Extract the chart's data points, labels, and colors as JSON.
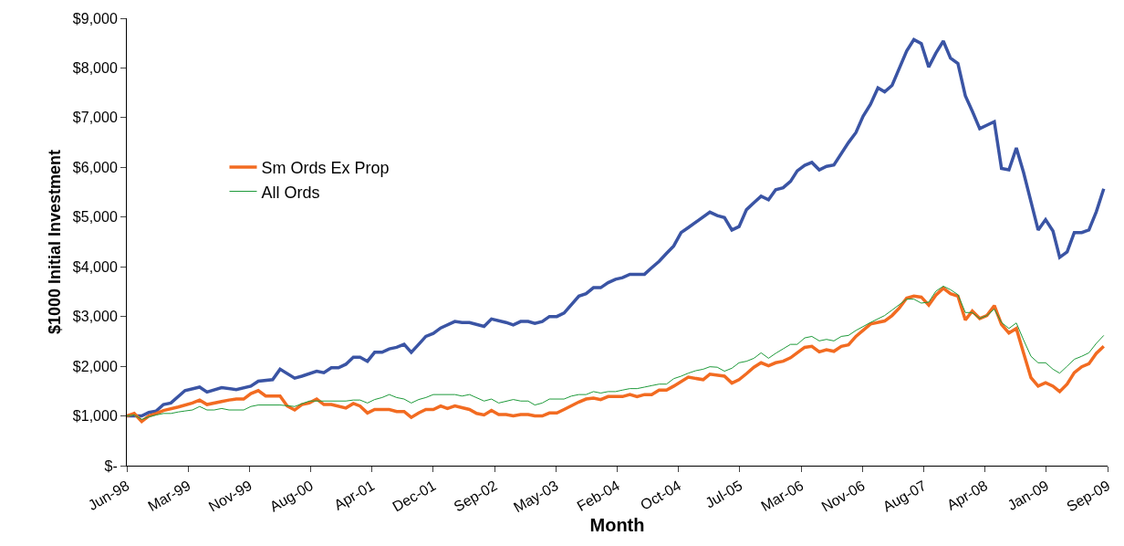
{
  "chart_data": {
    "type": "line",
    "xlabel": "Month",
    "ylabel": "$1000 Initial Investment",
    "xlim": [
      "1998-06-30",
      "2009-09-16"
    ],
    "xticks": [
      {
        "value": "1998-06-30",
        "label": "Jun-98"
      },
      {
        "value": "1999-03-13",
        "label": "Mar-99"
      },
      {
        "value": "1999-11-24",
        "label": "Nov-99"
      },
      {
        "value": "2000-08-06",
        "label": "Aug-00"
      },
      {
        "value": "2001-04-19",
        "label": "Apr-01"
      },
      {
        "value": "2001-12-31",
        "label": "Dec-01"
      },
      {
        "value": "2002-09-13",
        "label": "Sep-02"
      },
      {
        "value": "2003-05-27",
        "label": "May-03"
      },
      {
        "value": "2004-02-07",
        "label": "Feb-04"
      },
      {
        "value": "2004-10-20",
        "label": "Oct-04"
      },
      {
        "value": "2005-07-03",
        "label": "Jul-05"
      },
      {
        "value": "2006-03-16",
        "label": "Mar-06"
      },
      {
        "value": "2006-11-27",
        "label": "Nov-06"
      },
      {
        "value": "2007-08-10",
        "label": "Aug-07"
      },
      {
        "value": "2008-04-22",
        "label": "Apr-08"
      },
      {
        "value": "2009-01-03",
        "label": "Jan-09"
      },
      {
        "value": "2009-09-16",
        "label": "Sep-09"
      }
    ],
    "ylim": [
      0,
      9000
    ],
    "yticks": [
      {
        "value": 0,
        "label": "$-"
      },
      {
        "value": 1000,
        "label": "$1,000"
      },
      {
        "value": 2000,
        "label": "$2,000"
      },
      {
        "value": 3000,
        "label": "$3,000"
      },
      {
        "value": 4000,
        "label": "$4,000"
      },
      {
        "value": 5000,
        "label": "$5,000"
      },
      {
        "value": 6000,
        "label": "$6,000"
      },
      {
        "value": 7000,
        "label": "$7,000"
      },
      {
        "value": 8000,
        "label": "$8,000"
      },
      {
        "value": 9000,
        "label": "$9,000"
      }
    ],
    "legend": "left",
    "marker": "none",
    "line_style": "solid",
    "series": [
      {
        "color": "#3a54a4",
        "x": [
          "1998-06-30",
          "1998-08-31",
          "1998-09-30",
          "1998-10-31",
          "1998-11-30",
          "1998-12-31",
          "1999-02-28",
          "1999-04-30",
          "1999-05-31",
          "1999-07-31",
          "1999-09-30",
          "1999-11-30",
          "1999-12-31",
          "2000-02-29",
          "2000-03-31",
          "2000-05-31",
          "2000-06-30",
          "2000-08-31",
          "2000-09-30",
          "2000-10-31",
          "2000-11-30",
          "2000-12-31",
          "2001-01-31",
          "2001-02-28",
          "2001-03-31",
          "2001-04-30",
          "2001-05-31",
          "2001-06-30",
          "2001-07-31",
          "2001-08-31",
          "2001-09-30",
          "2001-10-31",
          "2001-11-30",
          "2001-12-31",
          "2002-01-31",
          "2002-03-31",
          "2002-04-30",
          "2002-05-31",
          "2002-07-31",
          "2002-08-31",
          "2002-10-31",
          "2002-11-30",
          "2002-12-31",
          "2003-01-31",
          "2003-02-28",
          "2003-03-31",
          "2003-04-30",
          "2003-05-31",
          "2003-06-30",
          "2003-08-31",
          "2003-09-30",
          "2003-10-31",
          "2003-11-30",
          "2003-12-31",
          "2004-01-31",
          "2004-02-29",
          "2004-03-31",
          "2004-05-31",
          "2004-06-30",
          "2004-07-31",
          "2004-08-31",
          "2004-09-30",
          "2004-10-31",
          "2004-11-30",
          "2005-02-28",
          "2005-03-31",
          "2005-04-30",
          "2005-05-31",
          "2005-06-30",
          "2005-07-31",
          "2005-08-31",
          "2005-09-30",
          "2005-10-31",
          "2005-11-30",
          "2005-12-31",
          "2006-01-31",
          "2006-02-28",
          "2006-03-31",
          "2006-04-30",
          "2006-05-31",
          "2006-06-30",
          "2006-07-31",
          "2006-09-30",
          "2006-10-31",
          "2006-11-30",
          "2006-12-31",
          "2007-01-31",
          "2007-02-28",
          "2007-03-31",
          "2007-05-31",
          "2007-06-30",
          "2007-07-31",
          "2007-08-31",
          "2007-09-30",
          "2007-10-31",
          "2007-11-30",
          "2007-12-31",
          "2008-01-31",
          "2008-02-29",
          "2008-03-31",
          "2008-05-31",
          "2008-06-30",
          "2008-07-31",
          "2008-08-31",
          "2008-09-30",
          "2008-11-30",
          "2008-12-31",
          "2009-01-31",
          "2009-02-28",
          "2009-03-31",
          "2009-04-30",
          "2009-05-31",
          "2009-06-30",
          "2009-07-31",
          "2009-08-31"
        ],
        "values": [
          1000,
          1000,
          1070,
          1100,
          1230,
          1260,
          1510,
          1580,
          1480,
          1570,
          1530,
          1600,
          1700,
          1730,
          1940,
          1760,
          1800,
          1900,
          1870,
          1970,
          1970,
          2040,
          2180,
          2180,
          2100,
          2280,
          2280,
          2350,
          2380,
          2440,
          2280,
          2440,
          2600,
          2660,
          2770,
          2900,
          2880,
          2880,
          2800,
          2950,
          2880,
          2830,
          2900,
          2900,
          2860,
          2900,
          3000,
          3000,
          3070,
          3410,
          3460,
          3580,
          3580,
          3680,
          3750,
          3780,
          3850,
          3850,
          3980,
          4110,
          4270,
          4420,
          4690,
          4790,
          5100,
          5030,
          4990,
          4740,
          4810,
          5150,
          5290,
          5420,
          5350,
          5550,
          5590,
          5720,
          5930,
          6040,
          6100,
          5950,
          6020,
          6050,
          6500,
          6700,
          7030,
          7270,
          7600,
          7520,
          7650,
          8340,
          8570,
          8490,
          8020,
          8300,
          8540,
          8200,
          8090,
          7440,
          7130,
          6780,
          6920,
          5980,
          5950,
          6390,
          5900,
          4740,
          4950,
          4720,
          4190,
          4300,
          4690,
          4690,
          4740,
          5110,
          5570
        ]
      },
      {
        "name": "Sm Ords Ex Prop",
        "color": "#f26b21",
        "x": [
          "1998-06-30",
          "1998-07-31",
          "1998-08-31",
          "1998-09-30",
          "1998-10-31",
          "1998-11-30",
          "1999-01-31",
          "1999-03-31",
          "1999-04-30",
          "1999-05-31",
          "1999-07-31",
          "1999-08-31",
          "1999-09-30",
          "1999-10-31",
          "1999-11-30",
          "1999-12-31",
          "2000-01-31",
          "2000-03-31",
          "2000-04-30",
          "2000-05-31",
          "2000-06-30",
          "2000-07-31",
          "2000-08-31",
          "2000-09-30",
          "2000-10-31",
          "2000-12-31",
          "2001-01-31",
          "2001-02-28",
          "2001-03-31",
          "2001-04-30",
          "2001-06-30",
          "2001-07-31",
          "2001-08-31",
          "2001-09-30",
          "2001-10-31",
          "2001-11-30",
          "2001-12-31",
          "2002-01-31",
          "2002-02-28",
          "2002-03-31",
          "2002-05-31",
          "2002-06-30",
          "2002-07-31",
          "2002-08-31",
          "2002-09-30",
          "2002-10-31",
          "2002-11-30",
          "2002-12-31",
          "2003-01-31",
          "2003-02-28",
          "2003-03-31",
          "2003-04-30",
          "2003-05-31",
          "2003-06-30",
          "2003-08-31",
          "2003-09-30",
          "2003-10-31",
          "2003-11-30",
          "2003-12-31",
          "2004-02-29",
          "2004-03-31",
          "2004-04-30",
          "2004-05-31",
          "2004-06-30",
          "2004-07-31",
          "2004-08-31",
          "2004-09-30",
          "2004-11-30",
          "2005-01-31",
          "2005-02-28",
          "2005-04-30",
          "2005-05-31",
          "2005-06-30",
          "2005-07-31",
          "2005-08-31",
          "2005-09-30",
          "2005-10-31",
          "2005-11-30",
          "2005-12-31",
          "2006-01-31",
          "2006-02-28",
          "2006-03-31",
          "2006-04-30",
          "2006-05-31",
          "2006-06-30",
          "2006-07-31",
          "2006-08-31",
          "2006-09-30",
          "2006-10-31",
          "2006-12-31",
          "2007-02-28",
          "2007-03-31",
          "2007-04-30",
          "2007-05-31",
          "2007-06-30",
          "2007-07-31",
          "2007-08-31",
          "2007-09-30",
          "2007-10-31",
          "2007-11-30",
          "2007-12-31",
          "2008-01-31",
          "2008-02-29",
          "2008-03-31",
          "2008-04-30",
          "2008-05-31",
          "2008-06-30",
          "2008-07-31",
          "2008-08-31",
          "2008-09-30",
          "2008-10-31",
          "2008-11-30",
          "2008-12-31",
          "2009-01-31",
          "2009-02-28",
          "2009-03-31",
          "2009-04-30",
          "2009-05-31",
          "2009-06-30",
          "2009-07-31",
          "2009-08-31"
        ],
        "values": [
          1000,
          1050,
          890,
          1000,
          1050,
          1110,
          1180,
          1260,
          1320,
          1230,
          1290,
          1320,
          1340,
          1340,
          1450,
          1510,
          1400,
          1400,
          1200,
          1120,
          1230,
          1260,
          1340,
          1230,
          1230,
          1160,
          1250,
          1200,
          1060,
          1130,
          1130,
          1090,
          1090,
          970,
          1060,
          1130,
          1130,
          1200,
          1150,
          1200,
          1130,
          1050,
          1020,
          1110,
          1030,
          1030,
          1000,
          1030,
          1030,
          1000,
          1000,
          1060,
          1060,
          1130,
          1280,
          1340,
          1360,
          1330,
          1390,
          1390,
          1430,
          1390,
          1430,
          1430,
          1520,
          1520,
          1600,
          1780,
          1730,
          1840,
          1800,
          1660,
          1730,
          1850,
          1980,
          2070,
          2010,
          2070,
          2100,
          2170,
          2270,
          2380,
          2400,
          2290,
          2330,
          2300,
          2400,
          2430,
          2600,
          2850,
          2910,
          3020,
          3170,
          3370,
          3410,
          3390,
          3230,
          3430,
          3570,
          3460,
          3410,
          2930,
          3110,
          2960,
          3020,
          3220,
          2840,
          2670,
          2760,
          2270,
          1770,
          1600,
          1670,
          1600,
          1490,
          1640,
          1870,
          1990,
          2050,
          2260,
          2400
        ]
      },
      {
        "name": "All Ords",
        "color": "#1e9a3a",
        "x": [
          "1998-06-30",
          "1998-07-31",
          "1998-08-31",
          "1998-09-30",
          "1998-10-31",
          "1998-11-30",
          "1998-12-31",
          "1999-01-31",
          "1999-02-28",
          "1999-03-31",
          "1999-04-30",
          "1999-05-31",
          "1999-06-30",
          "1999-07-31",
          "1999-08-31",
          "1999-10-31",
          "1999-11-30",
          "1999-12-31",
          "2000-03-31",
          "2000-05-31",
          "2000-07-31",
          "2000-09-30",
          "2000-12-31",
          "2001-01-31",
          "2001-02-28",
          "2001-03-31",
          "2001-04-30",
          "2001-05-31",
          "2001-06-30",
          "2001-07-31",
          "2001-08-31",
          "2001-09-30",
          "2001-10-31",
          "2001-11-30",
          "2001-12-31",
          "2002-03-31",
          "2002-04-30",
          "2002-05-31",
          "2002-07-31",
          "2002-08-31",
          "2002-09-30",
          "2002-11-30",
          "2002-12-31",
          "2003-01-31",
          "2003-02-28",
          "2003-03-31",
          "2003-04-30",
          "2003-06-30",
          "2003-07-31",
          "2003-08-31",
          "2003-09-30",
          "2003-10-31",
          "2003-11-30",
          "2003-12-31",
          "2004-01-31",
          "2004-02-29",
          "2004-03-31",
          "2004-04-30",
          "2004-05-31",
          "2004-06-30",
          "2004-07-31",
          "2004-08-31",
          "2004-09-30",
          "2004-10-31",
          "2004-11-30",
          "2004-12-31",
          "2005-01-31",
          "2005-02-28",
          "2005-03-31",
          "2005-04-30",
          "2005-05-31",
          "2005-06-30",
          "2005-07-31",
          "2005-08-31",
          "2005-09-30",
          "2005-10-31",
          "2005-11-30",
          "2005-12-31",
          "2006-01-31",
          "2006-02-28",
          "2006-03-31",
          "2006-04-30",
          "2006-05-31",
          "2006-06-30",
          "2006-07-31",
          "2006-08-31",
          "2006-09-30",
          "2006-10-31",
          "2006-12-31",
          "2007-02-28",
          "2007-03-31",
          "2007-05-31",
          "2007-06-30",
          "2007-07-31",
          "2007-08-31",
          "2007-09-30",
          "2007-10-31",
          "2007-11-30",
          "2007-12-31",
          "2008-01-31",
          "2008-02-29",
          "2008-03-31",
          "2008-04-30",
          "2008-05-31",
          "2008-06-30",
          "2008-07-31",
          "2008-08-31",
          "2008-09-30",
          "2008-10-31",
          "2008-11-30",
          "2008-12-31",
          "2009-01-31",
          "2009-02-28",
          "2009-03-31",
          "2009-04-30",
          "2009-05-31",
          "2009-06-30",
          "2009-07-31",
          "2009-08-31"
        ],
        "values": [
          1000,
          1020,
          930,
          980,
          1020,
          1050,
          1050,
          1080,
          1100,
          1120,
          1190,
          1120,
          1120,
          1150,
          1120,
          1120,
          1190,
          1220,
          1220,
          1190,
          1300,
          1300,
          1300,
          1320,
          1320,
          1260,
          1330,
          1370,
          1430,
          1370,
          1340,
          1260,
          1330,
          1370,
          1430,
          1430,
          1400,
          1430,
          1300,
          1340,
          1260,
          1330,
          1300,
          1300,
          1220,
          1260,
          1340,
          1340,
          1400,
          1430,
          1430,
          1490,
          1460,
          1490,
          1490,
          1520,
          1550,
          1550,
          1580,
          1610,
          1640,
          1640,
          1750,
          1800,
          1860,
          1910,
          1940,
          1990,
          1980,
          1900,
          1960,
          2070,
          2100,
          2160,
          2270,
          2160,
          2260,
          2350,
          2440,
          2440,
          2570,
          2600,
          2510,
          2540,
          2510,
          2600,
          2620,
          2720,
          2880,
          3020,
          3130,
          3350,
          3350,
          3270,
          3290,
          3510,
          3610,
          3540,
          3440,
          3080,
          3080,
          2960,
          3020,
          3150,
          2880,
          2760,
          2870,
          2530,
          2200,
          2070,
          2070,
          1940,
          1860,
          2000,
          2140,
          2200,
          2270,
          2460,
          2620
        ]
      }
    ]
  }
}
